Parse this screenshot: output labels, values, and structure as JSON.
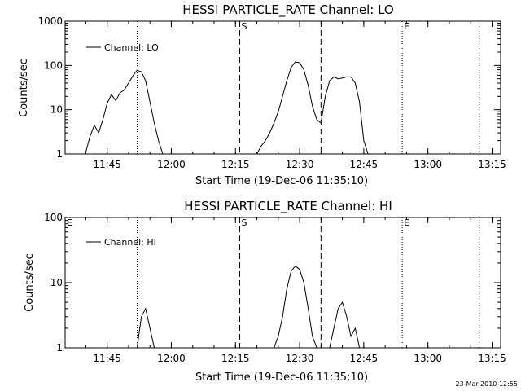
{
  "date_stamp": "23-Mar-2010 12:55",
  "chart_data": [
    {
      "type": "line",
      "title": "HESSI PARTICLE_RATE Channel: LO",
      "xlabel": "Start Time (19-Dec-06 11:35:10)",
      "ylabel": "Counts/sec",
      "y_scale": "log",
      "ylim": [
        1,
        1000
      ],
      "y_ticks": [
        "1",
        "10",
        "100",
        "1000"
      ],
      "xlim": [
        "11:35:10",
        "13:17:00"
      ],
      "x_ticks": [
        "11:45",
        "12:00",
        "12:15",
        "12:30",
        "12:45",
        "13:00",
        "13:15"
      ],
      "grid": false,
      "legend": "top-left",
      "series": [
        {
          "name": "Channel: LO",
          "x": [
            "11:40",
            "11:41",
            "11:42",
            "11:43",
            "11:44",
            "11:45",
            "11:46",
            "11:47",
            "11:48",
            "11:49",
            "11:50",
            "11:51",
            "11:52",
            "11:53",
            "11:54",
            "11:55",
            "11:56",
            "11:57",
            "11:58",
            "11:59",
            "12:00",
            "12:20",
            "12:21",
            "12:22",
            "12:23",
            "12:24",
            "12:25",
            "12:26",
            "12:27",
            "12:28",
            "12:29",
            "12:30",
            "12:31",
            "12:32",
            "12:33",
            "12:34",
            "12:35",
            "12:36",
            "12:37",
            "12:38",
            "12:39",
            "12:40",
            "12:41",
            "12:42",
            "12:43",
            "12:44",
            "12:45",
            "12:46"
          ],
          "y": [
            1.1,
            2.5,
            4.5,
            3,
            6,
            14,
            22,
            16,
            24,
            28,
            40,
            58,
            78,
            72,
            45,
            15,
            5,
            2,
            1,
            null,
            null,
            1,
            1.5,
            2,
            3,
            5,
            9,
            20,
            45,
            90,
            120,
            115,
            80,
            35,
            12,
            6,
            5,
            20,
            45,
            55,
            50,
            52,
            55,
            55,
            40,
            15,
            2,
            1
          ]
        }
      ],
      "annotations": [
        {
          "x": "11:52",
          "style": "dotted",
          "label": ""
        },
        {
          "x": "12:16",
          "style": "dashed",
          "label": "S"
        },
        {
          "x": "12:35",
          "style": "dashed",
          "label": ""
        },
        {
          "x": "12:54",
          "style": "dotted",
          "label": "E"
        },
        {
          "x": "13:12",
          "style": "dotted",
          "label": ""
        }
      ]
    },
    {
      "type": "line",
      "title": "HESSI PARTICLE_RATE Channel: HI",
      "xlabel": "Start Time (19-Dec-06 11:35:10)",
      "ylabel": "Counts/sec",
      "y_scale": "log",
      "ylim": [
        1,
        100
      ],
      "y_ticks": [
        "1",
        "10",
        "100"
      ],
      "xlim": [
        "11:35:10",
        "13:17:00"
      ],
      "x_ticks": [
        "11:45",
        "12:00",
        "12:15",
        "12:30",
        "12:45",
        "13:00",
        "13:15"
      ],
      "grid": false,
      "legend": "top-left",
      "top_left_marker": "E",
      "series": [
        {
          "name": "Channel: HI",
          "x": [
            "11:52",
            "11:53",
            "11:54",
            "11:55",
            "11:56",
            "12:24",
            "12:25",
            "12:26",
            "12:27",
            "12:28",
            "12:29",
            "12:30",
            "12:31",
            "12:32",
            "12:33",
            "12:34",
            "12:37",
            "12:38",
            "12:39",
            "12:40",
            "12:41",
            "12:42",
            "12:43",
            "12:44"
          ],
          "y": [
            1,
            3,
            4,
            2,
            1,
            1,
            1.5,
            3,
            8,
            15,
            18,
            16,
            10,
            4,
            1.5,
            1,
            1,
            2,
            4,
            5,
            3,
            1.5,
            2,
            1
          ]
        }
      ],
      "annotations": [
        {
          "x": "11:52",
          "style": "dotted",
          "label": ""
        },
        {
          "x": "12:16",
          "style": "dashed",
          "label": "S"
        },
        {
          "x": "12:35",
          "style": "dashed",
          "label": ""
        },
        {
          "x": "12:54",
          "style": "dotted",
          "label": "E"
        },
        {
          "x": "13:12",
          "style": "dotted",
          "label": ""
        }
      ]
    }
  ]
}
